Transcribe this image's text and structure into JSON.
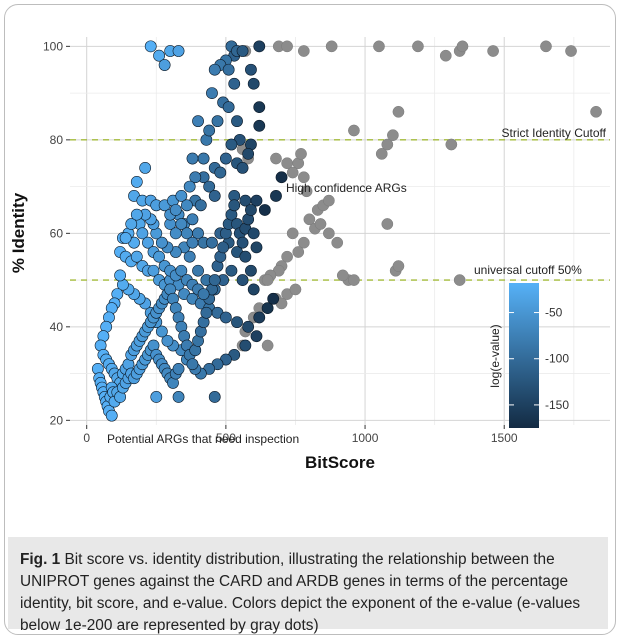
{
  "chart_data": {
    "type": "scatter",
    "xlabel": "BitScore",
    "ylabel": "% Identity",
    "xlim": [
      -60,
      1880
    ],
    "ylim": [
      19,
      102
    ],
    "xticks": [
      0,
      500,
      1000,
      1500
    ],
    "yticks": [
      20,
      40,
      60,
      80,
      100
    ],
    "grid": true,
    "colorbar": {
      "title": "log(e-value)",
      "ticks": [
        -50,
        -100,
        -150
      ],
      "range": [
        -175,
        -18
      ],
      "color_high": "#56B1F7",
      "color_low": "#132B43"
    },
    "gray_color": "#8c8c8c",
    "reference_lines": [
      {
        "y": 80,
        "label": "Strict Identity Cutoff"
      },
      {
        "y": 50,
        "label": "universal cutoff 50%"
      }
    ],
    "annotations": [
      {
        "text": "High confidence ARGs"
      },
      {
        "text": "Potential ARGs that need inspection"
      }
    ],
    "gray_points": [
      [
        570,
        99
      ],
      [
        690,
        100
      ],
      [
        720,
        100
      ],
      [
        780,
        99
      ],
      [
        880,
        100
      ],
      [
        1050,
        100
      ],
      [
        1190,
        100
      ],
      [
        1290,
        98
      ],
      [
        1340,
        99
      ],
      [
        1350,
        100
      ],
      [
        1460,
        99
      ],
      [
        1650,
        100
      ],
      [
        1740,
        99
      ],
      [
        1830,
        86
      ],
      [
        1120,
        86
      ],
      [
        960,
        82
      ],
      [
        1310,
        79
      ],
      [
        1060,
        77
      ],
      [
        1080,
        79
      ],
      [
        1100,
        81
      ],
      [
        760,
        75
      ],
      [
        770,
        77
      ],
      [
        740,
        73
      ],
      [
        780,
        72
      ],
      [
        790,
        69
      ],
      [
        830,
        65
      ],
      [
        850,
        66
      ],
      [
        870,
        67
      ],
      [
        800,
        63
      ],
      [
        820,
        61
      ],
      [
        840,
        62
      ],
      [
        870,
        60
      ],
      [
        900,
        58
      ],
      [
        740,
        60
      ],
      [
        780,
        58
      ],
      [
        760,
        56
      ],
      [
        720,
        55
      ],
      [
        700,
        53
      ],
      [
        690,
        52
      ],
      [
        660,
        51
      ],
      [
        640,
        50
      ],
      [
        720,
        47
      ],
      [
        750,
        48
      ],
      [
        680,
        46
      ],
      [
        700,
        45
      ],
      [
        560,
        78
      ],
      [
        580,
        76
      ],
      [
        680,
        76
      ],
      [
        720,
        75
      ],
      [
        1080,
        62
      ],
      [
        1110,
        52
      ],
      [
        1120,
        53
      ],
      [
        1340,
        50
      ],
      [
        940,
        50
      ],
      [
        960,
        50
      ],
      [
        920,
        51
      ],
      [
        650,
        50
      ],
      [
        600,
        42
      ],
      [
        620,
        44
      ],
      [
        570,
        39
      ],
      [
        560,
        36
      ],
      [
        650,
        36
      ]
    ],
    "points": [
      [
        230,
        100,
        -20
      ],
      [
        260,
        98,
        -25
      ],
      [
        300,
        99,
        -30
      ],
      [
        330,
        99,
        -35
      ],
      [
        280,
        96,
        -40
      ],
      [
        520,
        100,
        -100
      ],
      [
        530,
        98,
        -110
      ],
      [
        500,
        97,
        -90
      ],
      [
        480,
        96,
        -85
      ],
      [
        460,
        95,
        -80
      ],
      [
        510,
        95,
        -95
      ],
      [
        540,
        99,
        -105
      ],
      [
        560,
        99,
        -120
      ],
      [
        620,
        100,
        -150
      ],
      [
        590,
        95,
        -130
      ],
      [
        530,
        92,
        -110
      ],
      [
        600,
        92,
        -140
      ],
      [
        450,
        90,
        -80
      ],
      [
        490,
        88,
        -95
      ],
      [
        510,
        87,
        -100
      ],
      [
        620,
        87,
        -160
      ],
      [
        540,
        84,
        -120
      ],
      [
        470,
        84,
        -90
      ],
      [
        400,
        84,
        -75
      ],
      [
        620,
        83,
        -160
      ],
      [
        550,
        80,
        -130
      ],
      [
        520,
        79,
        -120
      ],
      [
        430,
        80,
        -85
      ],
      [
        440,
        82,
        -90
      ],
      [
        590,
        79,
        -145
      ],
      [
        580,
        77,
        -140
      ],
      [
        500,
        76,
        -110
      ],
      [
        540,
        75,
        -125
      ],
      [
        560,
        74,
        -130
      ],
      [
        460,
        74,
        -100
      ],
      [
        480,
        73,
        -105
      ],
      [
        420,
        72,
        -95
      ],
      [
        440,
        70,
        -100
      ],
      [
        460,
        68,
        -110
      ],
      [
        390,
        67,
        -90
      ],
      [
        410,
        66,
        -95
      ],
      [
        530,
        68,
        -120
      ],
      [
        570,
        67,
        -135
      ],
      [
        610,
        67,
        -150
      ],
      [
        640,
        65,
        -170
      ],
      [
        680,
        68,
        -160
      ],
      [
        700,
        72,
        -170
      ],
      [
        390,
        72,
        -80
      ],
      [
        420,
        76,
        -85
      ],
      [
        380,
        76,
        -80
      ],
      [
        210,
        74,
        -30
      ],
      [
        180,
        71,
        -25
      ],
      [
        170,
        68,
        -30
      ],
      [
        200,
        67,
        -30
      ],
      [
        230,
        67,
        -35
      ],
      [
        250,
        66,
        -40
      ],
      [
        280,
        66,
        -45
      ],
      [
        310,
        67,
        -50
      ],
      [
        340,
        68,
        -55
      ],
      [
        370,
        70,
        -65
      ],
      [
        360,
        66,
        -65
      ],
      [
        330,
        64,
        -60
      ],
      [
        300,
        62,
        -55
      ],
      [
        320,
        60,
        -60
      ],
      [
        350,
        62,
        -65
      ],
      [
        380,
        63,
        -75
      ],
      [
        400,
        60,
        -80
      ],
      [
        420,
        58,
        -90
      ],
      [
        450,
        58,
        -95
      ],
      [
        480,
        60,
        -110
      ],
      [
        510,
        58,
        -120
      ],
      [
        540,
        56,
        -125
      ],
      [
        570,
        55,
        -135
      ],
      [
        590,
        52,
        -140
      ],
      [
        600,
        48,
        -145
      ],
      [
        560,
        50,
        -130
      ],
      [
        520,
        52,
        -120
      ],
      [
        490,
        50,
        -110
      ],
      [
        460,
        48,
        -100
      ],
      [
        430,
        50,
        -90
      ],
      [
        400,
        52,
        -85
      ],
      [
        370,
        55,
        -75
      ],
      [
        350,
        57,
        -70
      ],
      [
        320,
        56,
        -65
      ],
      [
        290,
        57,
        -60
      ],
      [
        270,
        58,
        -55
      ],
      [
        250,
        60,
        -45
      ],
      [
        240,
        62,
        -40
      ],
      [
        230,
        63,
        -35
      ],
      [
        210,
        64,
        -35
      ],
      [
        190,
        62,
        -30
      ],
      [
        170,
        58,
        -25
      ],
      [
        150,
        60,
        -25
      ],
      [
        130,
        59,
        -20
      ],
      [
        120,
        56,
        -20
      ],
      [
        140,
        55,
        -25
      ],
      [
        160,
        54,
        -25
      ],
      [
        180,
        55,
        -30
      ],
      [
        200,
        53,
        -30
      ],
      [
        220,
        52,
        -35
      ],
      [
        240,
        52,
        -40
      ],
      [
        260,
        50,
        -45
      ],
      [
        280,
        49,
        -50
      ],
      [
        300,
        50,
        -55
      ],
      [
        330,
        49,
        -60
      ],
      [
        350,
        47,
        -65
      ],
      [
        380,
        46,
        -70
      ],
      [
        410,
        45,
        -80
      ],
      [
        440,
        44,
        -90
      ],
      [
        470,
        43,
        -100
      ],
      [
        500,
        42,
        -110
      ],
      [
        540,
        41,
        -125
      ],
      [
        580,
        40,
        -140
      ],
      [
        620,
        42,
        -155
      ],
      [
        650,
        44,
        -165
      ],
      [
        670,
        46,
        -170
      ],
      [
        610,
        38,
        -150
      ],
      [
        570,
        36,
        -135
      ],
      [
        530,
        34,
        -120
      ],
      [
        500,
        33,
        -110
      ],
      [
        470,
        32,
        -100
      ],
      [
        440,
        31,
        -95
      ],
      [
        410,
        30,
        -85
      ],
      [
        390,
        31,
        -80
      ],
      [
        360,
        33,
        -70
      ],
      [
        340,
        35,
        -65
      ],
      [
        310,
        36,
        -60
      ],
      [
        290,
        37,
        -55
      ],
      [
        270,
        39,
        -50
      ],
      [
        250,
        41,
        -45
      ],
      [
        230,
        43,
        -40
      ],
      [
        210,
        45,
        -35
      ],
      [
        190,
        46,
        -30
      ],
      [
        170,
        47,
        -30
      ],
      [
        150,
        48,
        -25
      ],
      [
        130,
        49,
        -25
      ],
      [
        120,
        51,
        -20
      ],
      [
        110,
        47,
        -20
      ],
      [
        100,
        45,
        -20
      ],
      [
        90,
        44,
        -20
      ],
      [
        80,
        42,
        -20
      ],
      [
        70,
        40,
        -20
      ],
      [
        60,
        38,
        -20
      ],
      [
        50,
        36,
        -20
      ],
      [
        60,
        34,
        -20
      ],
      [
        70,
        33,
        -25
      ],
      [
        80,
        32,
        -25
      ],
      [
        90,
        31,
        -25
      ],
      [
        100,
        30,
        -30
      ],
      [
        110,
        29,
        -30
      ],
      [
        120,
        28,
        -30
      ],
      [
        130,
        30,
        -30
      ],
      [
        140,
        31,
        -35
      ],
      [
        150,
        32,
        -35
      ],
      [
        160,
        34,
        -35
      ],
      [
        170,
        35,
        -40
      ],
      [
        180,
        36,
        -40
      ],
      [
        190,
        37,
        -40
      ],
      [
        200,
        38,
        -45
      ],
      [
        210,
        39,
        -45
      ],
      [
        220,
        40,
        -45
      ],
      [
        230,
        41,
        -50
      ],
      [
        240,
        42,
        -50
      ],
      [
        250,
        43,
        -55
      ],
      [
        260,
        44,
        -55
      ],
      [
        270,
        45,
        -60
      ],
      [
        280,
        46,
        -60
      ],
      [
        290,
        47,
        -65
      ],
      [
        300,
        48,
        -65
      ],
      [
        310,
        46,
        -70
      ],
      [
        320,
        44,
        -70
      ],
      [
        330,
        42,
        -75
      ],
      [
        340,
        40,
        -75
      ],
      [
        350,
        38,
        -80
      ],
      [
        360,
        36,
        -80
      ],
      [
        370,
        34,
        -85
      ],
      [
        380,
        32,
        -85
      ],
      [
        390,
        35,
        -90
      ],
      [
        400,
        37,
        -90
      ],
      [
        410,
        39,
        -95
      ],
      [
        420,
        41,
        -95
      ],
      [
        430,
        43,
        -100
      ],
      [
        440,
        46,
        -100
      ],
      [
        450,
        48,
        -105
      ],
      [
        460,
        50,
        -105
      ],
      [
        470,
        53,
        -110
      ],
      [
        480,
        55,
        -110
      ],
      [
        490,
        57,
        -115
      ],
      [
        500,
        60,
        -115
      ],
      [
        510,
        62,
        -120
      ],
      [
        520,
        64,
        -120
      ],
      [
        530,
        66,
        -125
      ],
      [
        540,
        62,
        -125
      ],
      [
        550,
        60,
        -130
      ],
      [
        560,
        58,
        -130
      ],
      [
        570,
        61,
        -135
      ],
      [
        580,
        63,
        -135
      ],
      [
        590,
        65,
        -140
      ],
      [
        600,
        60,
        -140
      ],
      [
        610,
        57,
        -145
      ],
      [
        40,
        31,
        -20
      ],
      [
        45,
        29,
        -20
      ],
      [
        50,
        28,
        -20
      ],
      [
        55,
        27,
        -20
      ],
      [
        60,
        26,
        -20
      ],
      [
        65,
        25,
        -20
      ],
      [
        70,
        24,
        -20
      ],
      [
        75,
        23,
        -20
      ],
      [
        80,
        22,
        -20
      ],
      [
        85,
        25,
        -25
      ],
      [
        90,
        27,
        -25
      ],
      [
        95,
        26,
        -25
      ],
      [
        100,
        24,
        -25
      ],
      [
        110,
        26,
        -30
      ],
      [
        120,
        25,
        -30
      ],
      [
        130,
        27,
        -30
      ],
      [
        140,
        28,
        -35
      ],
      [
        150,
        29,
        -35
      ],
      [
        160,
        30,
        -35
      ],
      [
        170,
        29,
        -40
      ],
      [
        180,
        30,
        -40
      ],
      [
        190,
        31,
        -40
      ],
      [
        200,
        32,
        -45
      ],
      [
        210,
        33,
        -45
      ],
      [
        220,
        34,
        -50
      ],
      [
        230,
        35,
        -50
      ],
      [
        240,
        36,
        -55
      ],
      [
        250,
        34,
        -55
      ],
      [
        260,
        33,
        -60
      ],
      [
        270,
        32,
        -60
      ],
      [
        280,
        31,
        -65
      ],
      [
        290,
        30,
        -65
      ],
      [
        300,
        29,
        -70
      ],
      [
        310,
        28,
        -70
      ],
      [
        320,
        30,
        -75
      ],
      [
        330,
        31,
        -75
      ],
      [
        250,
        25,
        -40
      ],
      [
        330,
        25,
        -70
      ],
      [
        460,
        25,
        -100
      ],
      [
        90,
        21,
        -20
      ],
      [
        140,
        59,
        -25
      ],
      [
        160,
        62,
        -30
      ],
      [
        180,
        64,
        -30
      ],
      [
        200,
        60,
        -35
      ],
      [
        220,
        58,
        -35
      ],
      [
        240,
        56,
        -40
      ],
      [
        260,
        55,
        -45
      ],
      [
        280,
        53,
        -50
      ],
      [
        300,
        52,
        -55
      ],
      [
        320,
        51,
        -60
      ],
      [
        340,
        52,
        -65
      ],
      [
        360,
        50,
        -70
      ],
      [
        380,
        49,
        -75
      ],
      [
        400,
        48,
        -80
      ],
      [
        420,
        47,
        -85
      ],
      [
        300,
        64,
        -55
      ],
      [
        320,
        65,
        -60
      ],
      [
        340,
        62,
        -65
      ],
      [
        360,
        60,
        -70
      ],
      [
        380,
        58,
        -75
      ]
    ]
  },
  "caption": {
    "label": "Fig. 1",
    "text": " Bit score vs. identity distribution, illustrating the relationship between the UNIPROT genes against the CARD and ARDB genes in terms of the percentage identity, bit score, and e-value. Colors depict the exponent of the e-value (e-values below 1e-200 are represented by gray dots)"
  }
}
